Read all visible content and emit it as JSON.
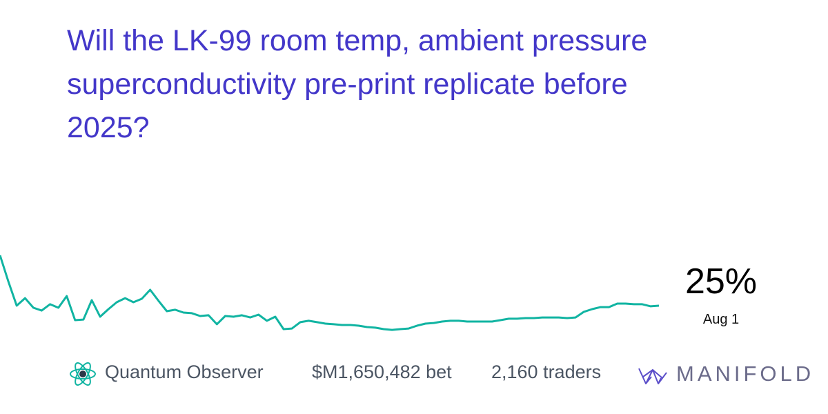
{
  "title": "Will the LK-99 room temp, ambient pressure superconductivity pre-print replicate before 2025?",
  "chart_data": {
    "type": "line",
    "color": "#11b4a2",
    "ylim": [
      0,
      100
    ],
    "values": [
      57.0,
      40.4,
      25.0,
      29.8,
      23.7,
      21.9,
      25.9,
      23.7,
      31.1,
      15.8,
      16.2,
      28.5,
      18.0,
      22.8,
      27.2,
      29.8,
      27.2,
      29.4,
      35.1,
      28.1,
      21.5,
      22.4,
      20.6,
      20.2,
      18.4,
      18.9,
      13.2,
      18.4,
      18.0,
      18.9,
      17.5,
      19.3,
      15.4,
      18.0,
      10.1,
      10.5,
      14.5,
      15.4,
      14.5,
      13.6,
      13.2,
      12.7,
      12.7,
      12.3,
      11.4,
      11.0,
      10.1,
      9.6,
      10.1,
      10.5,
      12.3,
      13.6,
      14.0,
      14.9,
      15.4,
      15.4,
      14.9,
      14.9,
      14.9,
      14.9,
      15.8,
      16.7,
      16.7,
      17.1,
      17.1,
      17.5,
      17.5,
      17.5,
      17.1,
      17.5,
      21.1,
      22.8,
      24.1,
      24.1,
      26.3,
      26.3,
      25.9,
      25.9,
      24.6,
      25.0
    ]
  },
  "probability_label": "25%",
  "date_label": "Aug 1",
  "creator": "Quantum Observer",
  "volume": "$M1,650,482 bet",
  "traders": "2,160 traders",
  "brand": "MANIFOLD"
}
